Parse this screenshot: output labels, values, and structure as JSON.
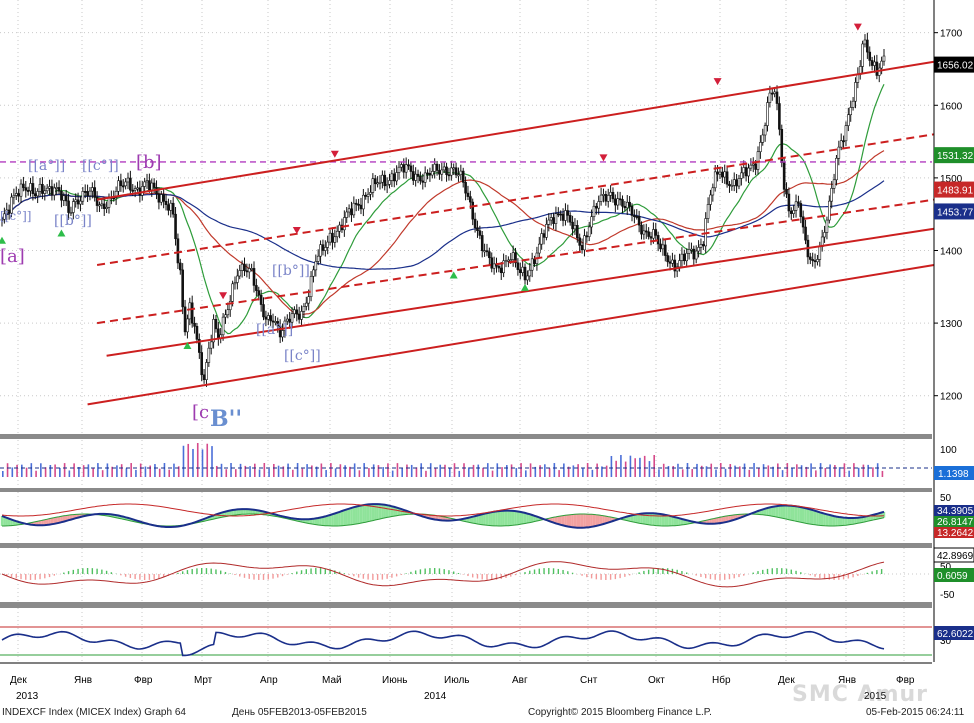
{
  "colors": {
    "up_bar": "#111111",
    "down_bar": "#111111",
    "channel": "#cc1f1f",
    "resistance": "#b23cbf",
    "ma_short": "#2e9c3a",
    "ma_mid": "#c0392b",
    "ma_long": "#1a2f8a",
    "wave": "#7a84c8",
    "label_b": "#6a8fd0"
  },
  "footer": {
    "ticker": "INDEXCF Index (MICEX Index) Graph 64",
    "period": "День 05FEB2013-05FEB2015",
    "copyright": "Copyright© 2015 Bloomberg Finance L.P.",
    "timestamp": "05-Feb-2015 06:24:11",
    "watermark": "SMC Amur"
  },
  "chart_data": {
    "type": "candlestick",
    "title": "",
    "price_axis": {
      "ticks": [
        "1700",
        "1600",
        "1500",
        "1400",
        "1300",
        "1200"
      ],
      "range": [
        1150,
        1745
      ]
    },
    "month_labels": [
      "Дек",
      "Янв",
      "Фвр",
      "Мрт",
      "Апр",
      "Май",
      "Июнь",
      "Июль",
      "Авг",
      "Снт",
      "Окт",
      "Нбр",
      "Дек",
      "Янв",
      "Фвр"
    ],
    "year_labels": [
      "2013",
      "2014",
      "2015"
    ],
    "price_keypoints": [
      [
        0,
        1440
      ],
      [
        3,
        1455
      ],
      [
        6,
        1480
      ],
      [
        9,
        1492
      ],
      [
        11,
        1488
      ],
      [
        14,
        1474
      ],
      [
        18,
        1485
      ],
      [
        22,
        1490
      ],
      [
        26,
        1468
      ],
      [
        28,
        1450
      ],
      [
        31,
        1470
      ],
      [
        35,
        1482
      ],
      [
        38,
        1476
      ],
      [
        41,
        1458
      ],
      [
        45,
        1472
      ],
      [
        49,
        1485
      ],
      [
        53,
        1492
      ],
      [
        57,
        1486
      ],
      [
        61,
        1490
      ],
      [
        65,
        1478
      ],
      [
        69,
        1470
      ],
      [
        72,
        1450
      ],
      [
        74,
        1380
      ],
      [
        75,
        1360
      ],
      [
        77,
        1290
      ],
      [
        79,
        1325
      ],
      [
        81,
        1300
      ],
      [
        83,
        1255
      ],
      [
        85,
        1215
      ],
      [
        87,
        1260
      ],
      [
        89,
        1300
      ],
      [
        91,
        1285
      ],
      [
        93,
        1305
      ],
      [
        96,
        1330
      ],
      [
        99,
        1365
      ],
      [
        102,
        1380
      ],
      [
        105,
        1375
      ],
      [
        108,
        1330
      ],
      [
        111,
        1300
      ],
      [
        114,
        1310
      ],
      [
        117,
        1290
      ],
      [
        120,
        1300
      ],
      [
        123,
        1310
      ],
      [
        126,
        1315
      ],
      [
        129,
        1345
      ],
      [
        132,
        1385
      ],
      [
        135,
        1400
      ],
      [
        138,
        1420
      ],
      [
        142,
        1430
      ],
      [
        145,
        1445
      ],
      [
        148,
        1460
      ],
      [
        151,
        1470
      ],
      [
        154,
        1480
      ],
      [
        158,
        1492
      ],
      [
        162,
        1498
      ],
      [
        166,
        1508
      ],
      [
        170,
        1512
      ],
      [
        174,
        1505
      ],
      [
        178,
        1500
      ],
      [
        182,
        1508
      ],
      [
        186,
        1514
      ],
      [
        190,
        1510
      ],
      [
        193,
        1498
      ],
      [
        196,
        1475
      ],
      [
        199,
        1440
      ],
      [
        202,
        1405
      ],
      [
        205,
        1382
      ],
      [
        208,
        1376
      ],
      [
        211,
        1385
      ],
      [
        214,
        1392
      ],
      [
        217,
        1372
      ],
      [
        220,
        1365
      ],
      [
        223,
        1385
      ],
      [
        226,
        1405
      ],
      [
        229,
        1430
      ],
      [
        232,
        1448
      ],
      [
        235,
        1455
      ],
      [
        238,
        1445
      ],
      [
        241,
        1422
      ],
      [
        244,
        1405
      ],
      [
        247,
        1440
      ],
      [
        250,
        1462
      ],
      [
        253,
        1470
      ],
      [
        256,
        1478
      ],
      [
        259,
        1472
      ],
      [
        262,
        1460
      ],
      [
        265,
        1450
      ],
      [
        268,
        1438
      ],
      [
        271,
        1425
      ],
      [
        274,
        1420
      ],
      [
        277,
        1402
      ],
      [
        280,
        1392
      ],
      [
        283,
        1380
      ],
      [
        286,
        1385
      ],
      [
        289,
        1395
      ],
      [
        292,
        1400
      ],
      [
        295,
        1418
      ],
      [
        297,
        1460
      ],
      [
        299,
        1488
      ],
      [
        302,
        1510
      ],
      [
        305,
        1500
      ],
      [
        308,
        1490
      ],
      [
        311,
        1500
      ],
      [
        314,
        1512
      ],
      [
        317,
        1525
      ],
      [
        320,
        1560
      ],
      [
        323,
        1610
      ],
      [
        325,
        1620
      ],
      [
        327,
        1570
      ],
      [
        329,
        1490
      ],
      [
        331,
        1460
      ],
      [
        333,
        1450
      ],
      [
        335,
        1465
      ],
      [
        337,
        1425
      ],
      [
        339,
        1400
      ],
      [
        341,
        1385
      ],
      [
        343,
        1395
      ],
      [
        345,
        1410
      ],
      [
        347,
        1440
      ],
      [
        349,
        1480
      ],
      [
        351,
        1530
      ],
      [
        353,
        1555
      ],
      [
        355,
        1570
      ],
      [
        357,
        1595
      ],
      [
        359,
        1620
      ],
      [
        361,
        1655
      ],
      [
        362,
        1690
      ],
      [
        364,
        1680
      ],
      [
        366,
        1660
      ],
      [
        368,
        1645
      ],
      [
        370,
        1655
      ],
      [
        371,
        1656
      ]
    ],
    "bar_count": 372,
    "overlays": {
      "resistance_level": 1522,
      "channel_upper": {
        "from": [
          40,
          1470
        ],
        "to": [
          372,
          1660
        ]
      },
      "channel_mid_dashed": {
        "from": [
          40,
          1380
        ],
        "to": [
          372,
          1560
        ]
      },
      "channel_lower_dashed": {
        "from": [
          40,
          1300
        ],
        "to": [
          372,
          1470
        ]
      },
      "channel_support": {
        "from": [
          44,
          1255
        ],
        "to": [
          372,
          1430
        ]
      },
      "channel_bottom": {
        "from": [
          36,
          1188
        ],
        "to": [
          372,
          1380
        ]
      }
    },
    "wave_labels": [
      "[[c°]]",
      "[a]",
      "[[a°]]",
      "[[c°]]",
      "[b]",
      "[[b°]]",
      "[c",
      "B''",
      "[[b°]]",
      "[[a°]]",
      "[[c°]]"
    ],
    "price_tags": [
      {
        "text": "1656.02",
        "value": 1656.02,
        "bg": "#000000",
        "fg": "#ffffff"
      },
      {
        "text": "1531.32",
        "value": 1531.32,
        "bg": "#1f8f2a",
        "fg": "#ffffff"
      },
      {
        "text": "1483.91",
        "value": 1483.91,
        "bg": "#c62828",
        "fg": "#ffffff"
      },
      {
        "text": "1453.77",
        "value": 1453.77,
        "bg": "#1a2f8a",
        "fg": "#ffffff"
      }
    ],
    "panels": [
      {
        "name": "volume",
        "ticks": [
          "100"
        ],
        "tags": [
          {
            "text": "1.1398",
            "bg": "#1a6fd8",
            "fg": "#ffffff"
          }
        ]
      },
      {
        "name": "dmi",
        "ticks": [
          "50"
        ],
        "tags": [
          {
            "text": "34.3905",
            "bg": "#1a2f8a",
            "fg": "#ffffff"
          },
          {
            "text": "26.8147",
            "bg": "#1f8f2a",
            "fg": "#ffffff"
          },
          {
            "text": "13.2642",
            "bg": "#c62828",
            "fg": "#ffffff"
          }
        ]
      },
      {
        "name": "macd",
        "ticks": [
          "50",
          "-50"
        ],
        "tags": [
          {
            "text": "42.8969",
            "bg": "#ffffff",
            "fg": "#000000"
          },
          {
            "text": "0.6059",
            "bg": "#1f8f2a",
            "fg": "#ffffff"
          }
        ]
      },
      {
        "name": "rsi",
        "ticks": [
          "30"
        ],
        "tags": [
          {
            "text": "62.6022",
            "bg": "#1a2f8a",
            "fg": "#ffffff"
          }
        ]
      }
    ]
  }
}
